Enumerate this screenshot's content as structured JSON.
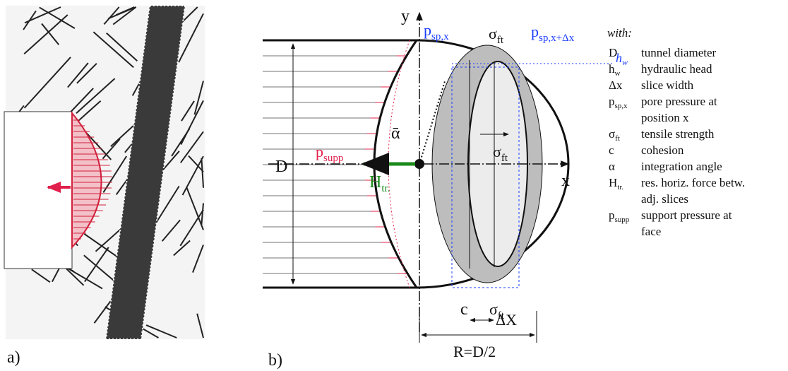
{
  "panel_a": {
    "label": "a)"
  },
  "panel_b": {
    "label": "b)",
    "y_axis": "y",
    "x_axis": "x",
    "p_sp_x": {
      "main": "p",
      "sub": "sp,x"
    },
    "sigma_top": {
      "main": "σ",
      "sub": "ft"
    },
    "p_sp_x_dx": {
      "main": "p",
      "sub": "sp,x+Δx"
    },
    "h_w": {
      "main": "h",
      "sub": "w"
    },
    "alpha": "ᾱ",
    "sigma_mid": {
      "main": "σ",
      "sub": "ft"
    },
    "D": "D",
    "p_supp": {
      "main": "p",
      "sub": "supp"
    },
    "H_tr": {
      "main": "H",
      "sub": "tr."
    },
    "c": "c",
    "sigma_bot": {
      "main": "σ",
      "sub": "ft"
    },
    "dx": "ΔX",
    "R": "R=D/2"
  },
  "legend": {
    "heading": "with:",
    "items": [
      {
        "symbol": {
          "main": "D"
        },
        "lines": [
          "tunnel diameter"
        ]
      },
      {
        "symbol": {
          "main": "h",
          "sub": "w"
        },
        "lines": [
          "hydraulic head"
        ]
      },
      {
        "symbol": {
          "main": "Δx"
        },
        "lines": [
          "slice width"
        ]
      },
      {
        "symbol": {
          "main": "p",
          "sub": "sp,x"
        },
        "lines": [
          "pore pressure at",
          "position x"
        ]
      },
      {
        "symbol": {
          "main": "σ",
          "sub": "ft"
        },
        "lines": [
          "tensile strength"
        ]
      },
      {
        "symbol": {
          "main": "c"
        },
        "lines": [
          "cohesion"
        ]
      },
      {
        "symbol": {
          "main": "α"
        },
        "lines": [
          "integration angle"
        ]
      },
      {
        "symbol": {
          "main": "H",
          "sub": "tr."
        },
        "lines": [
          "res. horiz. force betw.",
          "adj. slices"
        ]
      },
      {
        "symbol": {
          "main": "p",
          "sub": "supp"
        },
        "lines": [
          "support pressure at",
          "face"
        ]
      }
    ]
  }
}
